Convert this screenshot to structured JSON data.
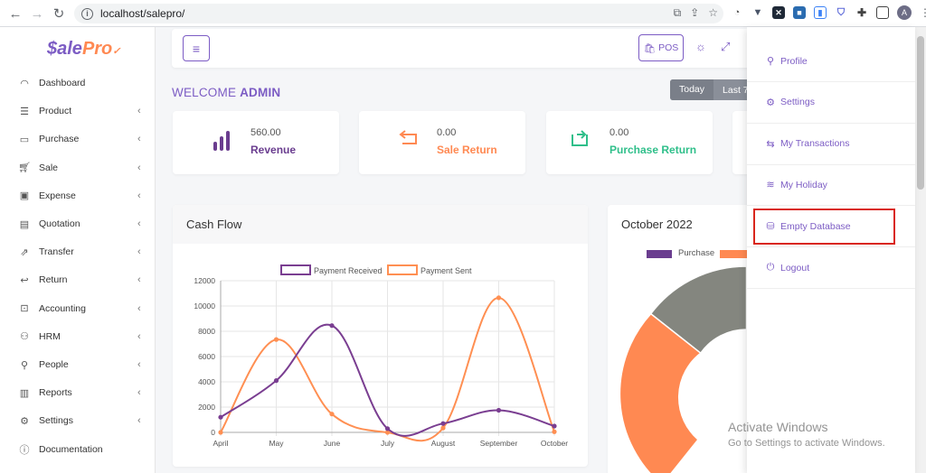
{
  "browser": {
    "url": "localhost/salepro/",
    "avatar_letter": "A"
  },
  "logo": {
    "main": "$ale",
    "accent": "Pro",
    "mark": "✓"
  },
  "sidebar": {
    "items": [
      {
        "label": "Dashboard",
        "icon": "speedometer-icon"
      },
      {
        "label": "Product",
        "icon": "list-icon"
      },
      {
        "label": "Purchase",
        "icon": "card-icon"
      },
      {
        "label": "Sale",
        "icon": "cart-icon"
      },
      {
        "label": "Expense",
        "icon": "wallet-icon"
      },
      {
        "label": "Quotation",
        "icon": "document-icon"
      },
      {
        "label": "Transfer",
        "icon": "share-icon"
      },
      {
        "label": "Return",
        "icon": "return-icon"
      },
      {
        "label": "Accounting",
        "icon": "briefcase-icon"
      },
      {
        "label": "HRM",
        "icon": "users-icon"
      },
      {
        "label": "People",
        "icon": "user-icon"
      },
      {
        "label": "Reports",
        "icon": "report-icon"
      },
      {
        "label": "Settings",
        "icon": "gear-icon"
      },
      {
        "label": "Documentation",
        "icon": "info-icon"
      }
    ]
  },
  "header": {
    "pos_label": "POS"
  },
  "welcome": {
    "prefix": "WELCOME",
    "name": "ADMIN"
  },
  "date_filter": {
    "today": "Today",
    "last": "Last 7"
  },
  "stats": [
    {
      "value": "560.00",
      "label": "Revenue",
      "color": "#6a3d8f"
    },
    {
      "value": "0.00",
      "label": "Sale Return",
      "color": "#ff8952"
    },
    {
      "value": "0.00",
      "label": "Purchase Return",
      "color": "#2fbf8a"
    }
  ],
  "cash_flow": {
    "title": "Cash Flow",
    "chart_data": {
      "type": "line",
      "categories": [
        "April",
        "May",
        "June",
        "July",
        "August",
        "September",
        "October"
      ],
      "series": [
        {
          "name": "Payment Received",
          "color": "#7a3e91",
          "values": [
            1200,
            4100,
            8450,
            300,
            700,
            1750,
            500
          ]
        },
        {
          "name": "Payment Sent",
          "color": "#ff8f52",
          "values": [
            0,
            7350,
            1450,
            0,
            350,
            10650,
            50
          ]
        }
      ],
      "ylim": [
        0,
        12000
      ],
      "yticks": [
        "0",
        "2000",
        "4000",
        "6000",
        "8000",
        "10000",
        "12000"
      ],
      "grid": true,
      "legend": "top"
    }
  },
  "october": {
    "title": "October 2022",
    "legend": [
      {
        "name": "Purchase",
        "color": "#6a3d8f"
      }
    ],
    "chart_data": {
      "type": "pie",
      "colors": [
        "#84867f",
        "#ff8952"
      ]
    }
  },
  "dropdown": {
    "items": [
      {
        "label": "Profile",
        "icon": "user-icon"
      },
      {
        "label": "Settings",
        "icon": "gear-icon"
      },
      {
        "label": "My Transactions",
        "icon": "exchange-icon"
      },
      {
        "label": "My Holiday",
        "icon": "waves-icon"
      },
      {
        "label": "Empty Database",
        "icon": "database-icon"
      },
      {
        "label": "Logout",
        "icon": "power-icon"
      }
    ]
  },
  "watermark": {
    "title": "Activate Windows",
    "subtitle": "Go to Settings to activate Windows."
  }
}
